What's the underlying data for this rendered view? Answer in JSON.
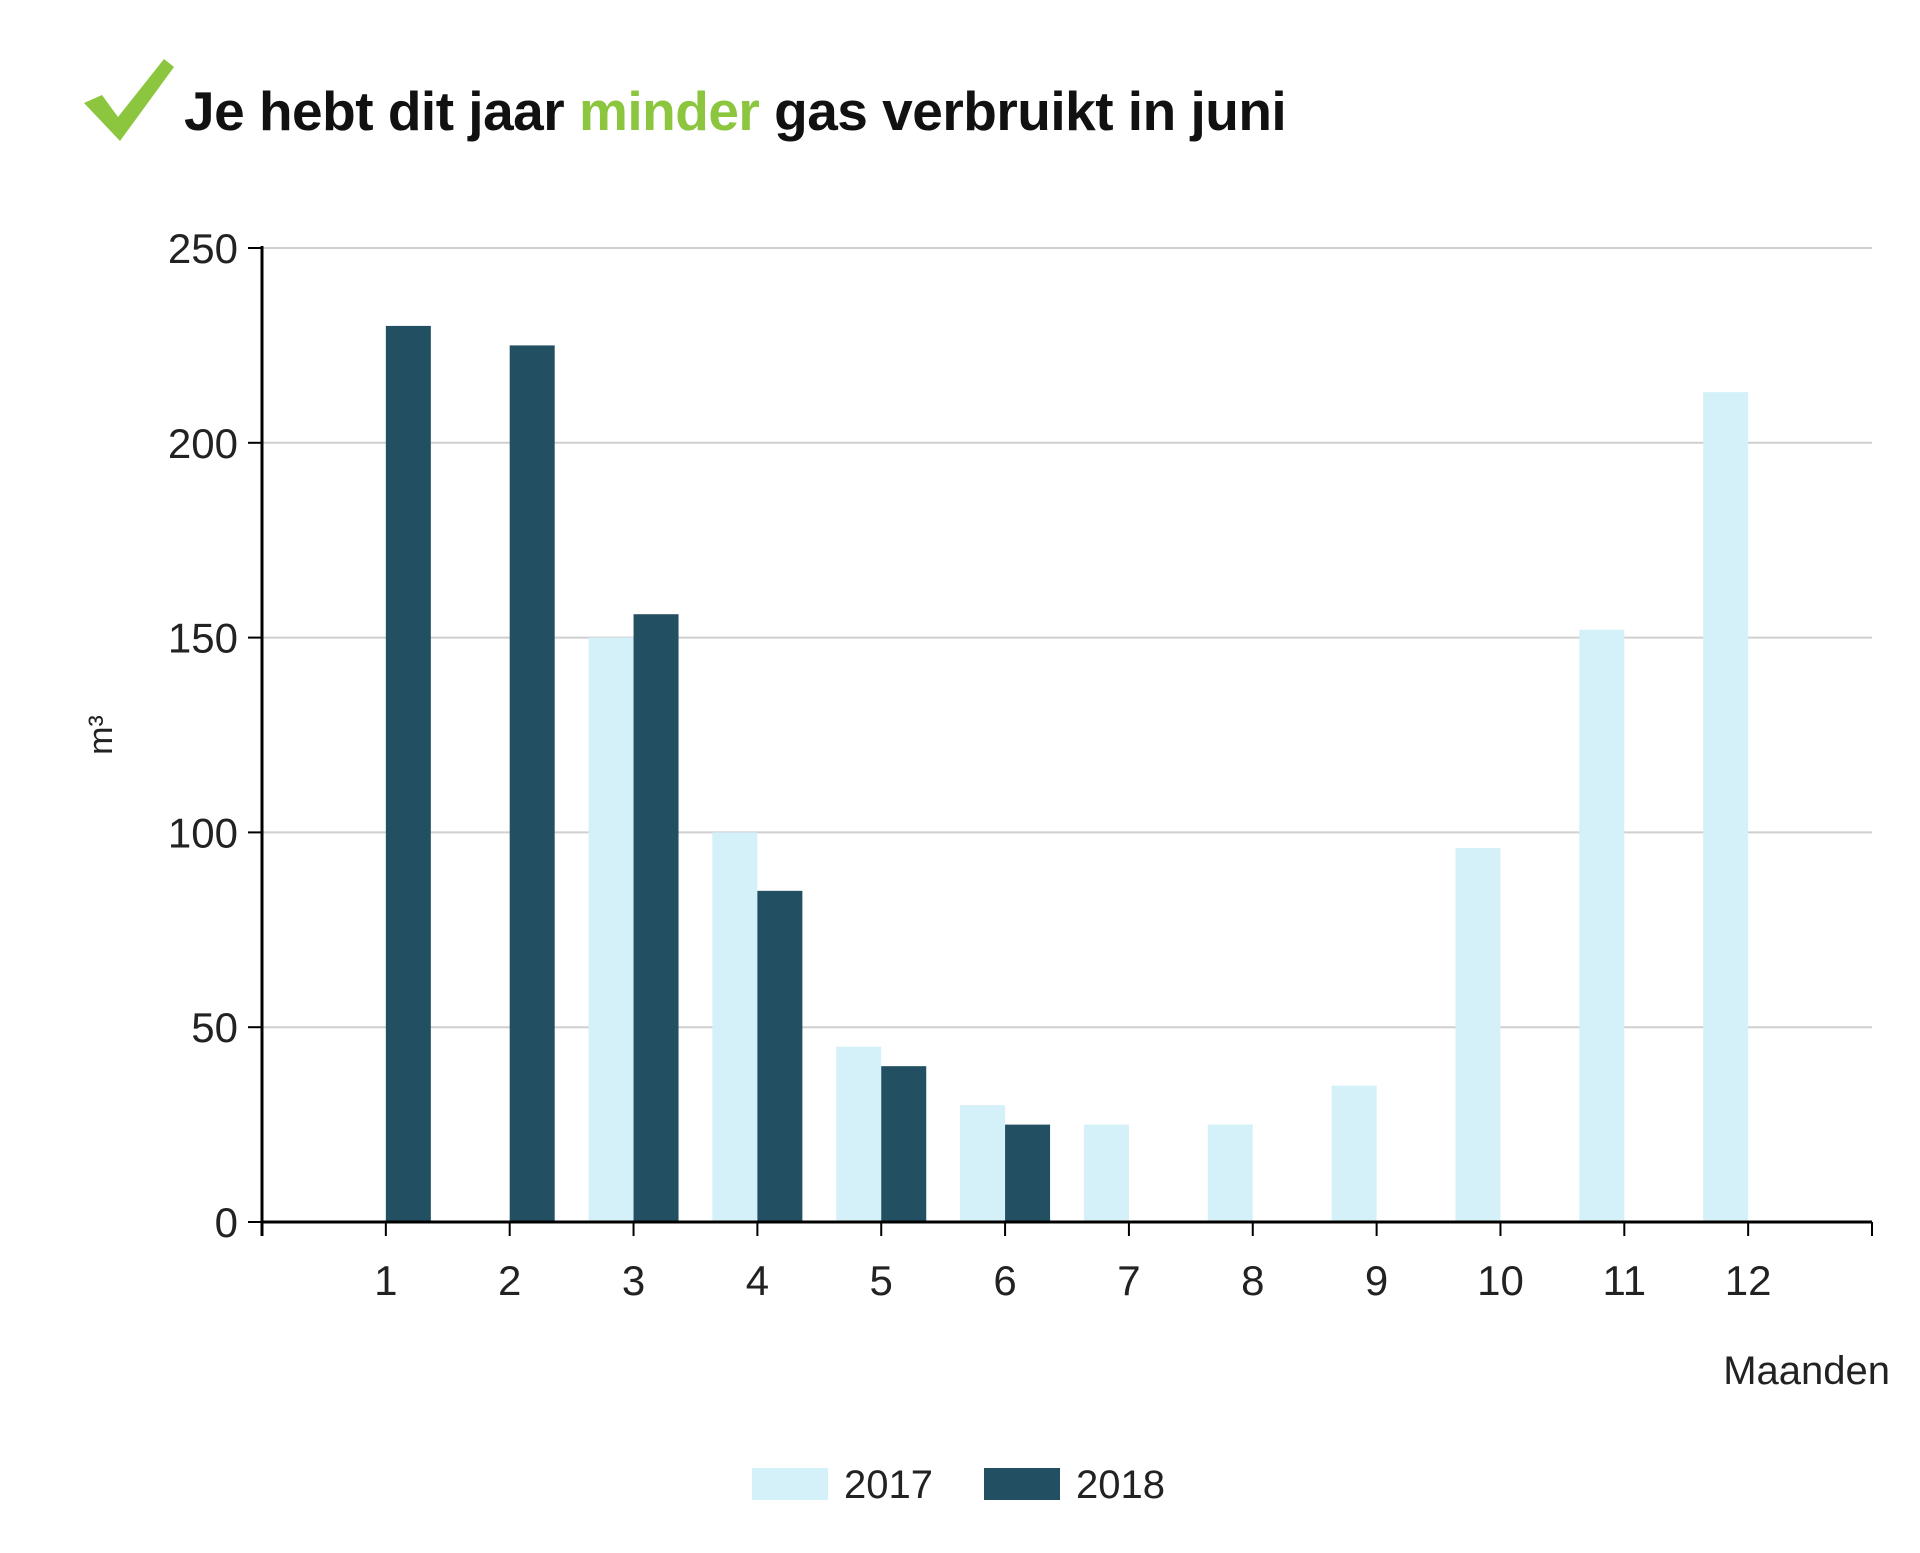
{
  "header": {
    "icon": "checkmark-icon",
    "icon_color": "#8cc63f",
    "title_part1": "Je hebt dit jaar ",
    "title_highlight": "minder",
    "title_part2": " gas verbruikt in juni",
    "highlight_color": "#8cc63f"
  },
  "chart_data": {
    "type": "bar",
    "categories": [
      "1",
      "2",
      "3",
      "4",
      "5",
      "6",
      "7",
      "8",
      "9",
      "10",
      "11",
      "12"
    ],
    "series": [
      {
        "name": "2017",
        "color": "#d4f0f9",
        "values": [
          0,
          0,
          150,
          100,
          45,
          30,
          25,
          25,
          35,
          96,
          152,
          213
        ]
      },
      {
        "name": "2018",
        "color": "#234f62",
        "values": [
          230,
          225,
          156,
          85,
          40,
          25,
          null,
          null,
          null,
          null,
          null,
          null
        ]
      }
    ],
    "ylabel": "m³",
    "xlabel": "Maanden",
    "ylim": [
      0,
      250
    ],
    "yticks": [
      0,
      50,
      100,
      150,
      200,
      250
    ],
    "grid": true,
    "legend": "bottom-center"
  }
}
